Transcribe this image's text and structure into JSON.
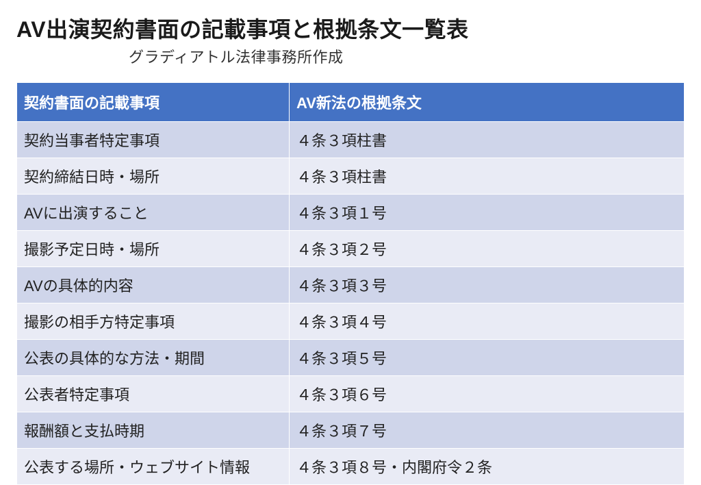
{
  "title": "AV出演契約書面の記載事項と根拠条文一覧表",
  "subtitle": "グラディアトル法律事務所作成",
  "table": {
    "header_bg": "#4472c4",
    "header_text_color": "#ffffff",
    "row_alt_bg_a": "#cfd5ea",
    "row_alt_bg_b": "#e9ebf5",
    "border_color": "#ffffff",
    "font_size_header": 22,
    "font_size_cell": 22,
    "col_widths": [
      "398px",
      "auto"
    ],
    "columns": [
      "契約書面の記載事項",
      "AV新法の根拠条文"
    ],
    "rows": [
      [
        "契約当事者特定事項",
        "４条３項柱書"
      ],
      [
        "契約締結日時・場所",
        "４条３項柱書"
      ],
      [
        "AVに出演すること",
        "４条３項１号"
      ],
      [
        "撮影予定日時・場所",
        "４条３項２号"
      ],
      [
        "AVの具体的内容",
        "４条３項３号"
      ],
      [
        "撮影の相手方特定事項",
        "４条３項４号"
      ],
      [
        "公表の具体的な方法・期間",
        "４条３項５号"
      ],
      [
        "公表者特定事項",
        "４条３項６号"
      ],
      [
        "報酬額と支払時期",
        "４条３項７号"
      ],
      [
        "公表する場所・ウェブサイト情報",
        "４条３項８号・内閣府令２条"
      ]
    ]
  }
}
